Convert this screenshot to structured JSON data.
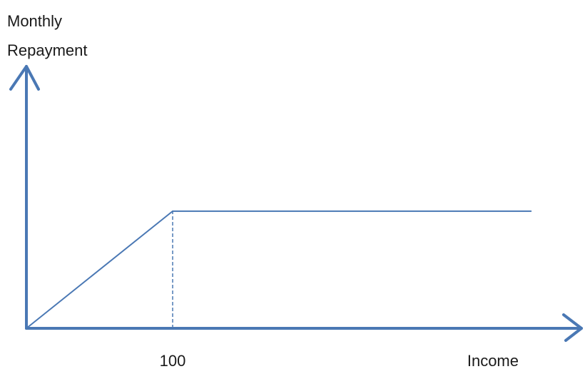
{
  "chart_data": {
    "type": "line",
    "title": "",
    "xlabel": "Income",
    "ylabel_lines": [
      "Monthly",
      "Repayment"
    ],
    "x_tick_labels": [
      "100"
    ],
    "x_ticks": [
      100
    ],
    "xlim": [
      0,
      345
    ],
    "ylim": [
      0,
      1.0
    ],
    "series": [
      {
        "x": [
          0,
          100,
          345
        ],
        "y": [
          0,
          0.44,
          0.44
        ]
      }
    ],
    "reference_lines": [
      {
        "style": "dashed",
        "x": 100,
        "y_from": 0,
        "y_to": 0.44
      }
    ],
    "grid": false,
    "legend": "none",
    "colors": {
      "axis": "#4a78b4",
      "series": "#4a78b4"
    }
  }
}
